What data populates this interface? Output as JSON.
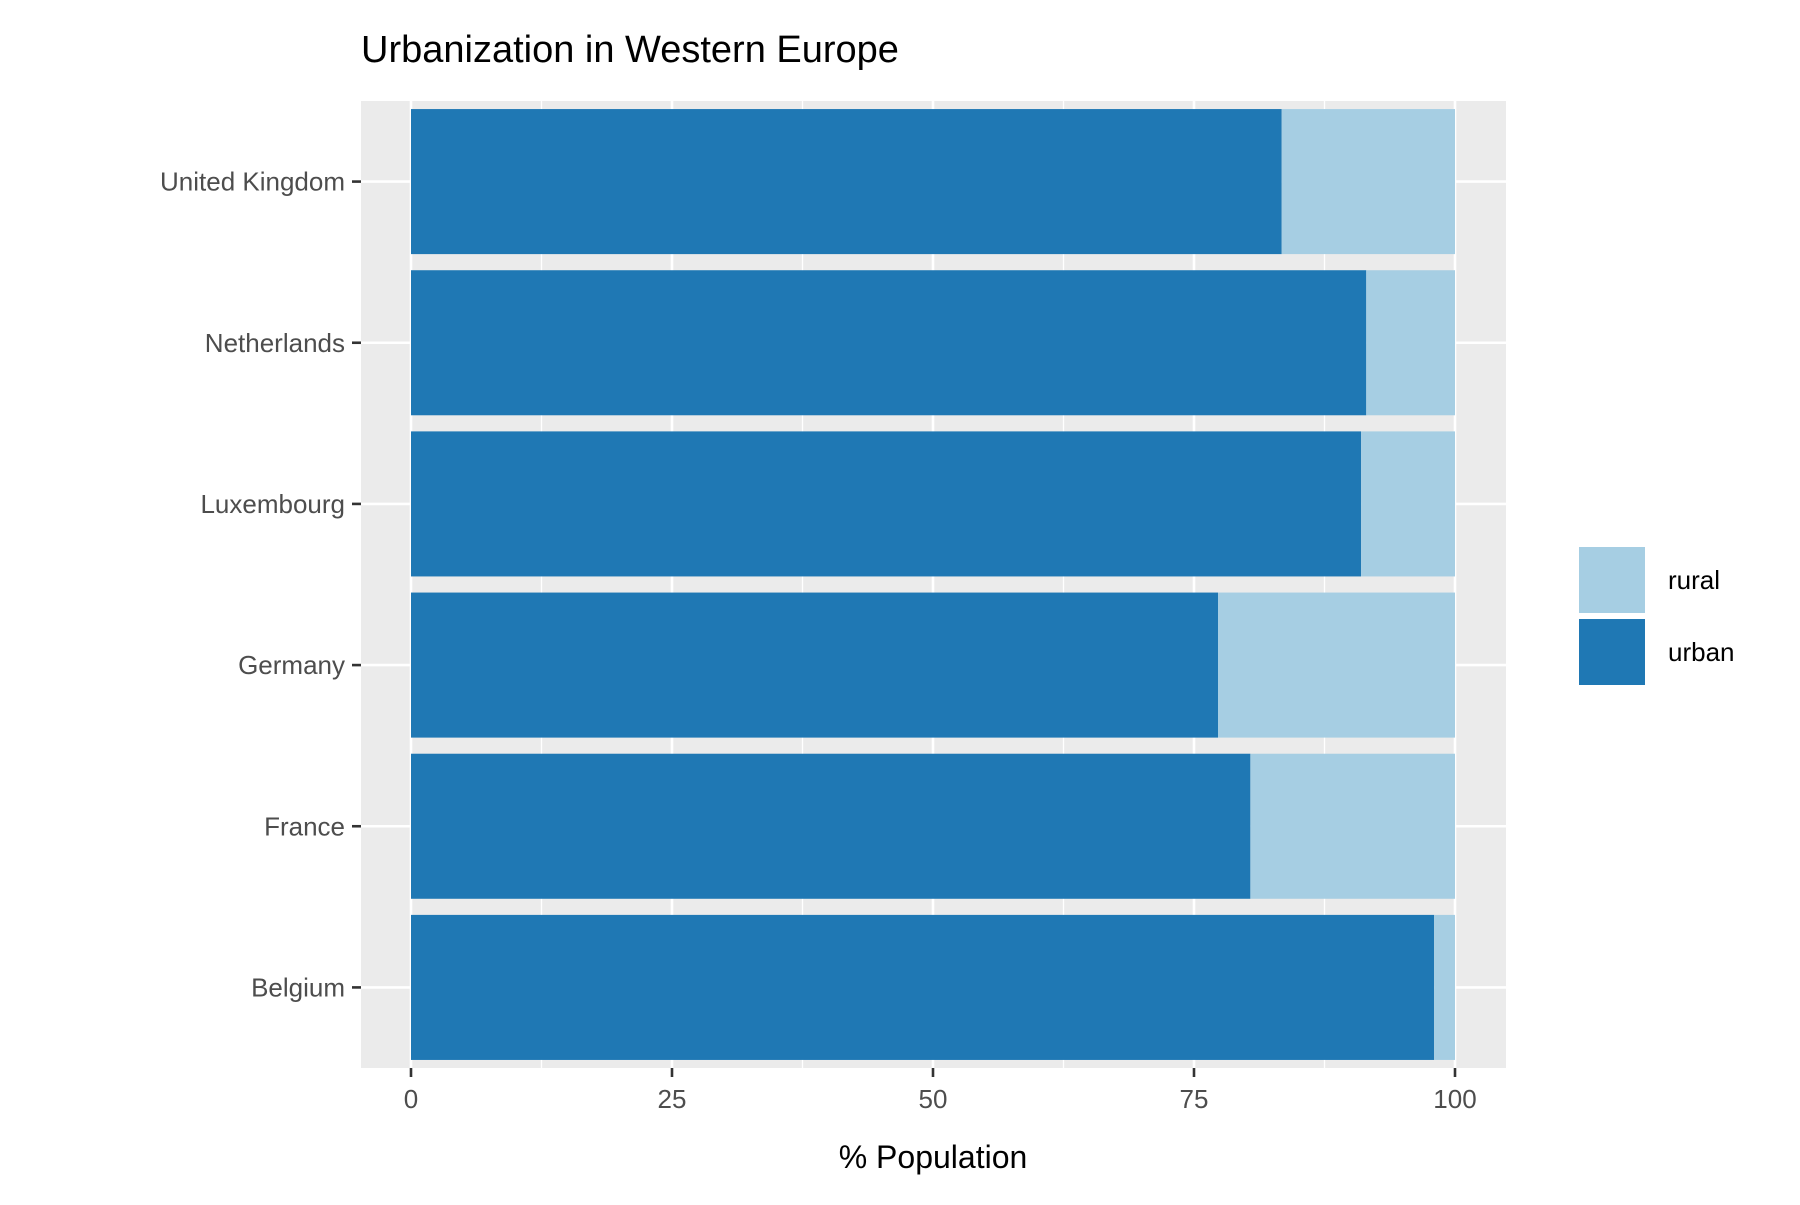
{
  "chart_data": {
    "type": "bar",
    "orientation": "horizontal",
    "stacked": true,
    "title": "Urbanization in Western Europe",
    "xlabel": "% Population",
    "ylabel": "",
    "xlim": [
      0,
      100
    ],
    "x_ticks": [
      "0",
      "25",
      "50",
      "75",
      "100"
    ],
    "x_tick_values": [
      0,
      25,
      50,
      75,
      100
    ],
    "grid": true,
    "categories": [
      "Belgium",
      "France",
      "Germany",
      "Luxembourg",
      "Netherlands",
      "United Kingdom"
    ],
    "series": [
      {
        "name": "urban",
        "color": "#1F78B4",
        "values": [
          98.0,
          80.4,
          77.3,
          91.0,
          91.5,
          83.4
        ]
      },
      {
        "name": "rural",
        "color": "#A6CEE3",
        "values": [
          2.0,
          19.6,
          22.7,
          9.0,
          8.5,
          16.6
        ]
      }
    ],
    "legend": {
      "position": "right",
      "entries": [
        {
          "label": "rural",
          "color": "#A6CEE3"
        },
        {
          "label": "urban",
          "color": "#1F78B4"
        }
      ]
    }
  }
}
